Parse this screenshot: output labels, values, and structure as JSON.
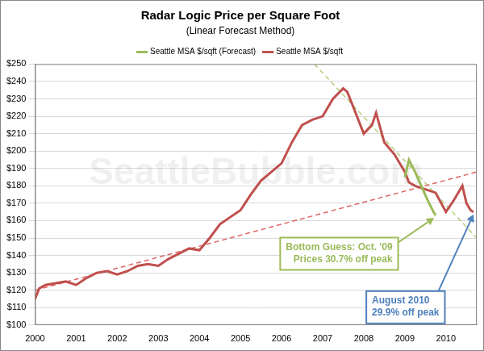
{
  "chart_data": {
    "type": "line",
    "title": "Radar Logic Price per Square Foot",
    "subtitle": "(Linear Forecast Method)",
    "watermark": "SeattleBubble.com",
    "legend": "top",
    "grid": true,
    "xlim": [
      2000,
      2010.75
    ],
    "xticks": [
      2000,
      2001,
      2002,
      2003,
      2004,
      2005,
      2006,
      2007,
      2008,
      2009,
      2010
    ],
    "ylim": [
      100,
      250
    ],
    "yticks": [
      {
        "value": 100,
        "label": "$100"
      },
      {
        "value": 110,
        "label": "$110"
      },
      {
        "value": 120,
        "label": "$120"
      },
      {
        "value": 130,
        "label": "$130"
      },
      {
        "value": 140,
        "label": "$140"
      },
      {
        "value": 150,
        "label": "$150"
      },
      {
        "value": 160,
        "label": "$160"
      },
      {
        "value": 170,
        "label": "$170"
      },
      {
        "value": 180,
        "label": "$180"
      },
      {
        "value": 190,
        "label": "$190"
      },
      {
        "value": 200,
        "label": "$200"
      },
      {
        "value": 210,
        "label": "$210"
      },
      {
        "value": 220,
        "label": "$220"
      },
      {
        "value": 230,
        "label": "$230"
      },
      {
        "value": 240,
        "label": "$240"
      },
      {
        "value": 250,
        "label": "$250"
      }
    ],
    "series": [
      {
        "name": "Seattle MSA $/sqft",
        "color": "#c0504d",
        "line_style": "solid",
        "x": [
          2000.0,
          2000.1,
          2000.25,
          2000.5,
          2000.75,
          2001.0,
          2001.25,
          2001.5,
          2001.75,
          2002.0,
          2002.25,
          2002.5,
          2002.75,
          2003.0,
          2003.25,
          2003.5,
          2003.75,
          2004.0,
          2004.25,
          2004.5,
          2004.75,
          2005.0,
          2005.25,
          2005.5,
          2005.75,
          2006.0,
          2006.25,
          2006.5,
          2006.75,
          2007.0,
          2007.25,
          2007.5,
          2007.6,
          2007.75,
          2008.0,
          2008.2,
          2008.3,
          2008.5,
          2008.75,
          2009.0,
          2009.1,
          2009.25,
          2009.5,
          2009.75,
          2010.0,
          2010.2,
          2010.4,
          2010.5,
          2010.6,
          2010.67
        ],
        "values": [
          115,
          121,
          123,
          124,
          125,
          123,
          127,
          130,
          131,
          129,
          131,
          134,
          135,
          134,
          138,
          141,
          144,
          143,
          150,
          158,
          162,
          166,
          175,
          183,
          188,
          193,
          205,
          215,
          218,
          220,
          230,
          236,
          234,
          225,
          210,
          215,
          222,
          205,
          198,
          188,
          182,
          180,
          178,
          176,
          165,
          172,
          180,
          170,
          166,
          165
        ]
      },
      {
        "name": "Seattle MSA $/sqft (Forecast)",
        "color": "#9bbb59",
        "line_style": "solid",
        "x": [
          2009.0,
          2009.1,
          2009.25,
          2009.4,
          2009.55,
          2009.7,
          2009.75
        ],
        "values": [
          185,
          195,
          188,
          180,
          172,
          165,
          163
        ]
      }
    ],
    "trend_lines": [
      {
        "color": "#e06666",
        "line_style": "dashed",
        "x": [
          2000,
          2010.75
        ],
        "values": [
          120,
          188
        ]
      },
      {
        "color": "#b5cf7a",
        "line_style": "dashed",
        "x": [
          2006.8,
          2010.75
        ],
        "values": [
          250,
          150
        ]
      }
    ],
    "annotations": [
      {
        "lines": [
          "Bottom Guess: Oct. '09",
          "Prices 30.7% off peak"
        ],
        "color": "#9bbb59",
        "series": "Seattle MSA $/sqft (Forecast)"
      },
      {
        "lines": [
          "August 2010",
          "29.9% off peak"
        ],
        "color": "#4f81bd",
        "series": "Seattle MSA $/sqft"
      }
    ]
  }
}
